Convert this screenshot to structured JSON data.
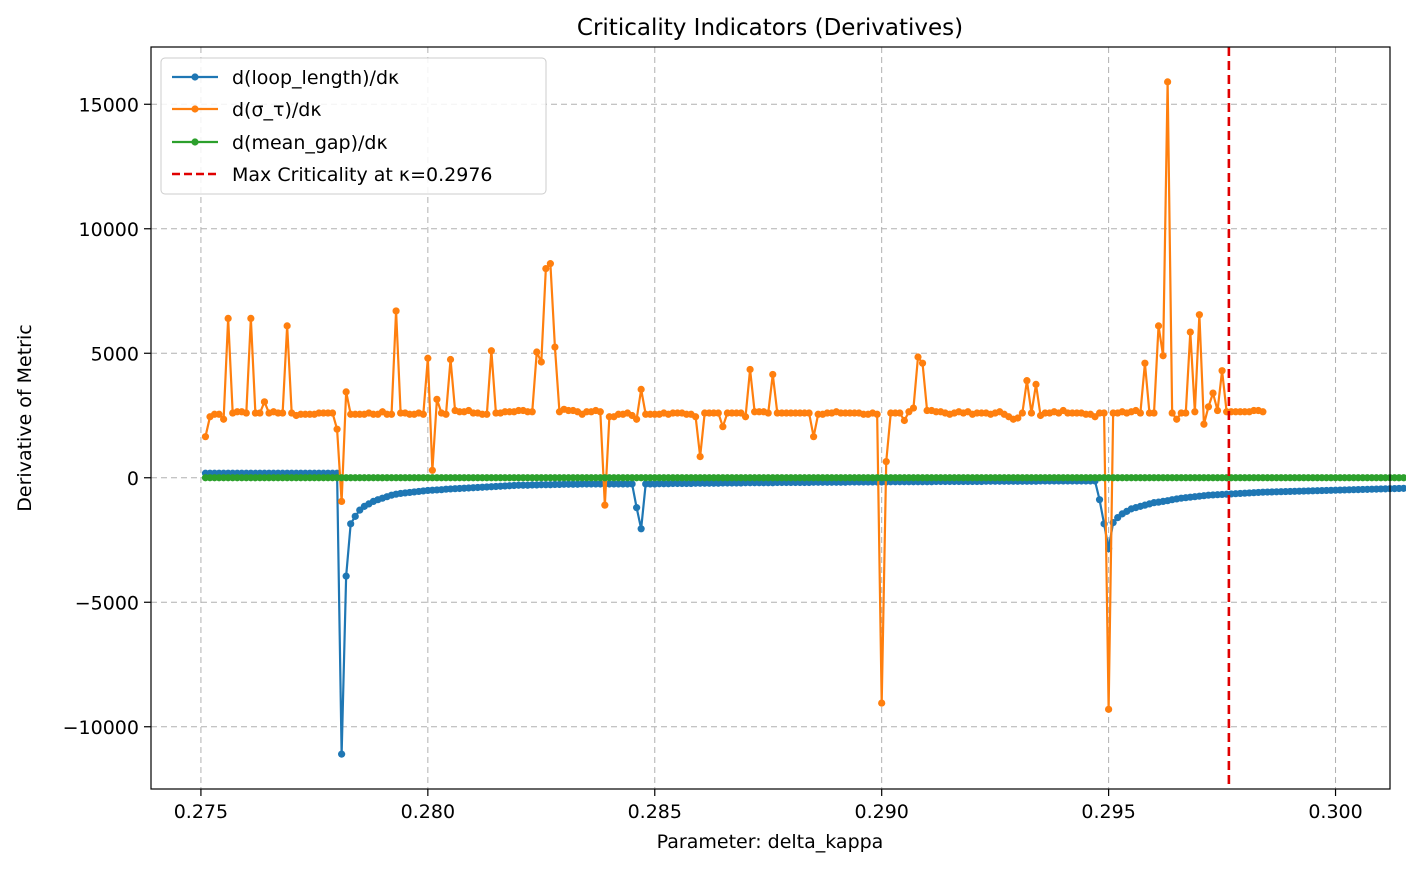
{
  "chart_data": {
    "type": "line",
    "title": "Criticality Indicators (Derivatives)",
    "xlabel": "Parameter: delta_kappa",
    "ylabel": "Derivative of Metric",
    "xlim": [
      0.2739,
      0.3012
    ],
    "ylim": [
      -12500,
      17300
    ],
    "xticks": [
      0.275,
      0.28,
      0.285,
      0.29,
      0.295,
      0.3
    ],
    "xtick_labels": [
      "0.275",
      "0.280",
      "0.285",
      "0.290",
      "0.295",
      "0.300"
    ],
    "yticks": [
      -10000,
      -5000,
      0,
      5000,
      10000,
      15000
    ],
    "ytick_labels": [
      "−10000",
      "−5000",
      "0",
      "5000",
      "10000",
      "15000"
    ],
    "grid": true,
    "legend_position": "top-left",
    "x_start": 0.2751,
    "x_step": 0.0001,
    "series": [
      {
        "name": "d(loop_length)/dκ",
        "color": "#1f77b4",
        "values": [
          180,
          180,
          180,
          180,
          180,
          180,
          180,
          180,
          180,
          180,
          180,
          180,
          180,
          180,
          180,
          180,
          180,
          180,
          180,
          180,
          180,
          180,
          180,
          180,
          180,
          180,
          180,
          180,
          180,
          180,
          -11100,
          -3950,
          -1850,
          -1550,
          -1300,
          -1150,
          -1050,
          -950,
          -880,
          -820,
          -760,
          -700,
          -660,
          -630,
          -610,
          -590,
          -570,
          -550,
          -530,
          -510,
          -500,
          -490,
          -480,
          -460,
          -450,
          -440,
          -430,
          -420,
          -410,
          -400,
          -390,
          -380,
          -370,
          -360,
          -350,
          -340,
          -330,
          -320,
          -310,
          -300,
          -300,
          -300,
          -290,
          -290,
          -280,
          -280,
          -280,
          -270,
          -270,
          -260,
          -260,
          -260,
          -260,
          -250,
          -250,
          -250,
          -250,
          -250,
          -250,
          -250,
          -250,
          -250,
          -250,
          -250,
          -250,
          -1200,
          -2050,
          -250,
          -250,
          -250,
          -240,
          -240,
          -240,
          -230,
          -230,
          -230,
          -230,
          -230,
          -220,
          -220,
          -220,
          -220,
          -220,
          -220,
          -210,
          -210,
          -210,
          -210,
          -210,
          -200,
          -200,
          -200,
          -200,
          -200,
          -200,
          -200,
          -190,
          -190,
          -190,
          -190,
          -190,
          -190,
          -190,
          -190,
          -180,
          -180,
          -180,
          -180,
          -180,
          -180,
          -180,
          -180,
          -170,
          -170,
          -170,
          -170,
          -170,
          -170,
          -170,
          -170,
          -170,
          -160,
          -160,
          -160,
          -160,
          -160,
          -160,
          -160,
          -160,
          -160,
          -160,
          -150,
          -150,
          -150,
          -150,
          -150,
          -150,
          -150,
          -150,
          -150,
          -150,
          -150,
          -140,
          -140,
          -140,
          -140,
          -140,
          -140,
          -140,
          -140,
          -140,
          -140,
          -140,
          -140,
          -130,
          -130,
          -130,
          -130,
          -130,
          -130,
          -130,
          -130,
          -130,
          -130,
          -130,
          -130,
          -130,
          -880,
          -1850,
          -2850,
          -1800,
          -1600,
          -1450,
          -1350,
          -1250,
          -1200,
          -1150,
          -1100,
          -1050,
          -1000,
          -980,
          -950,
          -920,
          -880,
          -850,
          -820,
          -800,
          -780,
          -760,
          -740,
          -720,
          -700,
          -690,
          -680,
          -670,
          -660,
          -650,
          -640,
          -630,
          -620,
          -610,
          -600,
          -590,
          -580,
          -575,
          -570,
          -565,
          -560,
          -555,
          -550,
          -545,
          -540,
          -535,
          -530,
          -525,
          -520,
          -515,
          -510,
          -505,
          -500,
          -495,
          -490,
          -485,
          -480,
          -475,
          -470,
          -465,
          -460,
          -455,
          -450,
          -445,
          -440,
          -435,
          -430,
          -425,
          -420,
          -415,
          -410,
          -405,
          -400,
          -395,
          -390
        ]
      },
      {
        "name": "d(σ_τ)/dκ",
        "color": "#ff7f0e",
        "values": [
          1650,
          2450,
          2550,
          2550,
          2350,
          6400,
          2600,
          2650,
          2650,
          2600,
          6400,
          2600,
          2600,
          3050,
          2600,
          2650,
          2600,
          2600,
          6100,
          2600,
          2500,
          2550,
          2550,
          2550,
          2550,
          2600,
          2600,
          2600,
          2600,
          1950,
          -950,
          3450,
          2550,
          2550,
          2550,
          2550,
          2600,
          2550,
          2550,
          2650,
          2550,
          2550,
          6700,
          2600,
          2600,
          2550,
          2550,
          2600,
          2550,
          4800,
          300,
          3150,
          2600,
          2550,
          4750,
          2700,
          2650,
          2650,
          2700,
          2600,
          2600,
          2550,
          2550,
          5100,
          2600,
          2600,
          2650,
          2650,
          2650,
          2700,
          2700,
          2650,
          2650,
          5050,
          4650,
          8400,
          8600,
          5250,
          2650,
          2750,
          2700,
          2700,
          2650,
          2550,
          2650,
          2650,
          2700,
          2650,
          -1100,
          2450,
          2450,
          2550,
          2550,
          2600,
          2500,
          2350,
          3550,
          2550,
          2550,
          2550,
          2550,
          2600,
          2550,
          2600,
          2600,
          2600,
          2550,
          2550,
          2450,
          850,
          2600,
          2600,
          2600,
          2600,
          2050,
          2600,
          2600,
          2600,
          2600,
          2450,
          4350,
          2650,
          2650,
          2650,
          2600,
          4150,
          2600,
          2600,
          2600,
          2600,
          2600,
          2600,
          2600,
          2600,
          1650,
          2550,
          2550,
          2600,
          2600,
          2650,
          2600,
          2600,
          2600,
          2600,
          2600,
          2550,
          2550,
          2600,
          2550,
          -9050,
          650,
          2600,
          2600,
          2600,
          2300,
          2650,
          2800,
          4850,
          4600,
          2700,
          2700,
          2650,
          2650,
          2600,
          2550,
          2600,
          2650,
          2600,
          2650,
          2550,
          2600,
          2600,
          2600,
          2550,
          2600,
          2650,
          2550,
          2450,
          2350,
          2400,
          2600,
          3900,
          2600,
          3750,
          2500,
          2600,
          2600,
          2650,
          2600,
          2700,
          2600,
          2600,
          2600,
          2600,
          2550,
          2550,
          2450,
          2600,
          2600,
          -9300,
          2600,
          2600,
          2650,
          2600,
          2650,
          2700,
          2600,
          4600,
          2600,
          2600,
          6100,
          4900,
          15900,
          2600,
          2350,
          2600,
          2600,
          5850,
          2650,
          6550,
          2150,
          2850,
          3400,
          2700,
          4300,
          2650,
          2650,
          2650,
          2650,
          2650,
          2650,
          2700,
          2700,
          2650
        ]
      },
      {
        "name": "d(mean_gap)/dκ",
        "color": "#2ca02c",
        "constant_value": 0
      }
    ],
    "annotations": [
      {
        "type": "vline",
        "x": 0.29765,
        "color": "#e00000",
        "style": "dashed",
        "label": "Max Criticality at κ=0.2976"
      }
    ]
  }
}
